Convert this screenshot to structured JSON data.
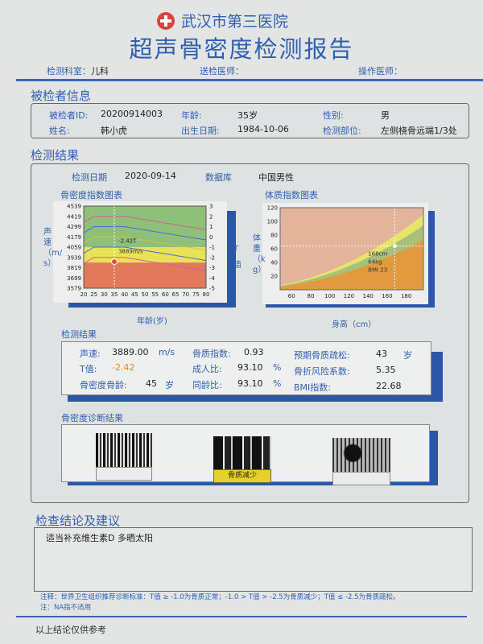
{
  "header": {
    "hospital": "武汉市第三医院",
    "title": "超声骨密度检测报告",
    "dept_label": "检测科室：",
    "dept": "儿科",
    "referring_label": "送检医师：",
    "referring": "",
    "operator_label": "操作医师：",
    "operator": ""
  },
  "patient": {
    "section": "被检者信息",
    "id_label": "被检者ID:",
    "id": "20200914003",
    "age_label": "年龄:",
    "age": "35岁",
    "sex_label": "性别:",
    "sex": "男",
    "name_label": "姓名:",
    "name": "韩小虎",
    "dob_label": "出生日期:",
    "dob": "1984-10-06",
    "site_label": "检测部位:",
    "site": "左侧桡骨远端1/3处"
  },
  "results": {
    "section": "检测结果",
    "date_label": "检测日期",
    "date": "2020-09-14",
    "db_label": "数据库",
    "db": "中国男性"
  },
  "bmd_chart": {
    "title": "骨密度指数图表",
    "ylabel": "声速（m/s）",
    "y2label": "T值",
    "xlabel": "年龄(岁)",
    "xticks": [
      20,
      25,
      30,
      35,
      40,
      45,
      50,
      55,
      60,
      65,
      70,
      75,
      80
    ],
    "yticks": [
      3579,
      3699,
      3819,
      3939,
      4059,
      4179,
      4299,
      4419,
      4539
    ],
    "y2ticks": [
      3,
      2,
      1,
      0,
      -1,
      -2,
      -3,
      -4,
      -5
    ],
    "annotation_t": "-2.42T",
    "annotation_sos": "3889m/s",
    "point": {
      "age": 35,
      "sos": 3889
    },
    "reference_T": [
      2,
      1,
      0,
      -1,
      -2
    ],
    "band_colors": {
      "normal": "#8ec07a",
      "osteopenia": "#e8e255",
      "osteoporosis": "#e2795a"
    }
  },
  "bmi_chart": {
    "title": "体质指数图表",
    "ylabel": "体重（kg）",
    "xlabel": "身高（cm）",
    "xticks": [
      60,
      80,
      100,
      120,
      140,
      160,
      180
    ],
    "yticks": [
      20,
      40,
      60,
      80,
      100,
      120
    ],
    "annotation": [
      "168cm",
      "64kg",
      "BMI 23"
    ],
    "point": {
      "height": 168,
      "weight": 64
    },
    "bmi_bounds": [
      18.5,
      24,
      28
    ],
    "band_colors": [
      "#e39a3e",
      "#a8c07a",
      "#e7e46a",
      "#e3b49a"
    ]
  },
  "measure": {
    "section": "检测结果",
    "sos_label": "声速:",
    "sos": "3889.00",
    "sos_unit": "m/s",
    "t_label": "T值:",
    "t": "-2.42",
    "age_label": "骨密度骨龄:",
    "bone_age": "45",
    "age_unit": "岁",
    "qi_label": "骨质指数:",
    "qi": "0.93",
    "adult_label": "成人比:",
    "adult": "93.10",
    "pct": "%",
    "same_label": "同龄比:",
    "same": "93.10",
    "op_label": "预期骨质疏松:",
    "op": "43",
    "op_unit": "岁",
    "risk_label": "骨折风险系数:",
    "risk": "5.35",
    "bmi_label": "BMI指数:",
    "bmi": "22.68"
  },
  "diagnosis": {
    "section": "骨密度诊断结果",
    "labels": [
      "",
      "骨质减少",
      ""
    ],
    "active_color": "#e6d12a"
  },
  "conclusion": {
    "section": "检查结论及建议",
    "text": "适当补充维生素D 多晒太阳",
    "note1": "注释：世界卫生组织推荐诊断标准：T值 ≥ -1.0为骨质正常；-1.0 > T值 > -2.5为骨质减少；T值 ≤ -2.5为骨质疏松。",
    "note2": "注：NA指不适用",
    "footer": "以上结论仅供参考"
  }
}
